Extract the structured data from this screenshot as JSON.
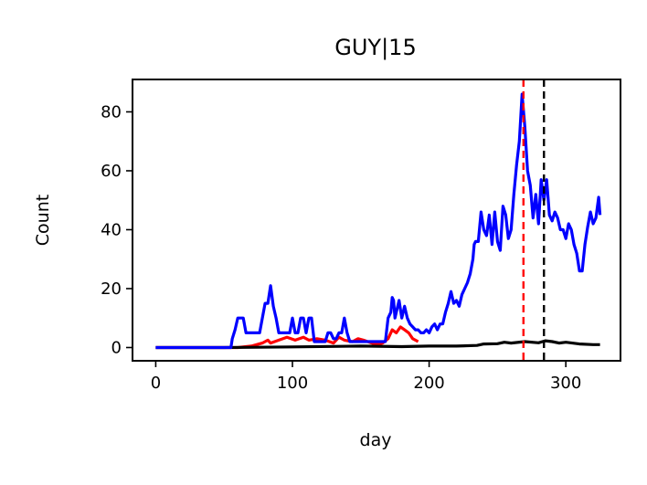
{
  "chart_data": {
    "type": "line",
    "title": "GUY|15",
    "xlabel": "day",
    "ylabel": "Count",
    "xlim": [
      -17,
      340
    ],
    "ylim": [
      -4.5,
      91
    ],
    "xticks": [
      0,
      100,
      200,
      300
    ],
    "yticks": [
      0,
      20,
      40,
      60,
      80
    ],
    "grid": false,
    "legend": "none",
    "vlines": [
      {
        "x": 269,
        "color": "#ff0000",
        "style": "dashed"
      },
      {
        "x": 284,
        "color": "#000000",
        "style": "dashed"
      }
    ],
    "series": [
      {
        "color": "#ff0000",
        "x": [
          0,
          60,
          70,
          78,
          82,
          84,
          90,
          96,
          102,
          108,
          112,
          118,
          124,
          130,
          134,
          138,
          144,
          148,
          152,
          158,
          162,
          166,
          170,
          173,
          176,
          179,
          182,
          185,
          188,
          192
        ],
        "values": [
          0,
          0,
          0.5,
          1.5,
          2.5,
          1.5,
          2.5,
          3.5,
          2.5,
          3.5,
          2.5,
          3,
          2.5,
          1.5,
          3.5,
          2.5,
          2,
          3,
          2.5,
          1.5,
          1,
          1.5,
          3,
          6,
          5,
          7,
          6,
          5,
          3,
          2
        ]
      },
      {
        "color": "#000000",
        "x": [
          0,
          50,
          100,
          150,
          180,
          200,
          220,
          235,
          240,
          250,
          255,
          260,
          270,
          280,
          285,
          290,
          295,
          300,
          310,
          320,
          325
        ],
        "values": [
          0,
          0,
          0.2,
          0.5,
          0.3,
          0.5,
          0.5,
          0.7,
          1.2,
          1.3,
          1.8,
          1.5,
          2,
          1.6,
          2.3,
          2,
          1.5,
          1.8,
          1.2,
          1,
          1
        ]
      },
      {
        "color": "#0000ff",
        "x": [
          0,
          55,
          56,
          58,
          60,
          62,
          64,
          66,
          68,
          70,
          72,
          74,
          76,
          78,
          80,
          82,
          84,
          86,
          88,
          90,
          92,
          94,
          96,
          98,
          100,
          102,
          104,
          106,
          108,
          110,
          112,
          114,
          116,
          118,
          120,
          122,
          124,
          126,
          128,
          130,
          132,
          134,
          136,
          138,
          140,
          142,
          144,
          146,
          148,
          150,
          152,
          154,
          156,
          158,
          160,
          162,
          164,
          166,
          168,
          170,
          172,
          173,
          174,
          175,
          176,
          178,
          180,
          182,
          184,
          186,
          188,
          190,
          192,
          194,
          196,
          198,
          200,
          202,
          204,
          206,
          208,
          210,
          212,
          214,
          216,
          218,
          220,
          222,
          224,
          226,
          228,
          230,
          232,
          233,
          234,
          236,
          238,
          240,
          242,
          244,
          246,
          248,
          250,
          252,
          254,
          256,
          258,
          260,
          262,
          264,
          266,
          268,
          270,
          272,
          274,
          276,
          278,
          280,
          282,
          284,
          286,
          288,
          290,
          292,
          294,
          296,
          298,
          300,
          302,
          304,
          306,
          308,
          310,
          312,
          314,
          316,
          318,
          320,
          322,
          324,
          325
        ],
        "values": [
          0,
          0,
          3,
          6,
          10,
          10,
          10,
          5,
          5,
          5,
          5,
          5,
          5,
          10,
          15,
          15,
          21,
          14,
          10,
          5,
          5,
          5,
          5,
          5,
          10,
          5,
          5,
          10,
          10,
          5,
          10,
          10,
          2,
          2,
          2,
          2,
          2,
          5,
          5,
          3,
          3,
          5,
          5,
          10,
          5,
          2,
          2,
          2,
          2,
          2,
          2,
          2,
          2,
          2,
          2,
          2,
          2,
          2,
          2,
          10,
          12,
          17,
          16,
          10,
          12,
          16,
          10,
          14,
          10,
          8,
          7,
          6,
          6,
          5,
          5,
          6,
          5,
          7,
          8,
          6,
          8,
          8,
          12,
          15,
          19,
          15,
          16,
          14,
          18,
          20,
          22,
          25,
          30,
          35,
          36,
          36,
          46,
          40,
          38,
          45,
          35,
          46,
          36,
          33,
          48,
          45,
          37,
          40,
          52,
          62,
          70,
          86,
          75,
          60,
          55,
          44,
          52,
          42,
          57,
          50,
          57,
          45,
          43,
          46,
          44,
          40,
          40,
          37,
          42,
          40,
          35,
          32,
          26,
          26,
          35,
          41,
          46,
          42,
          44,
          51,
          45
        ]
      }
    ]
  }
}
